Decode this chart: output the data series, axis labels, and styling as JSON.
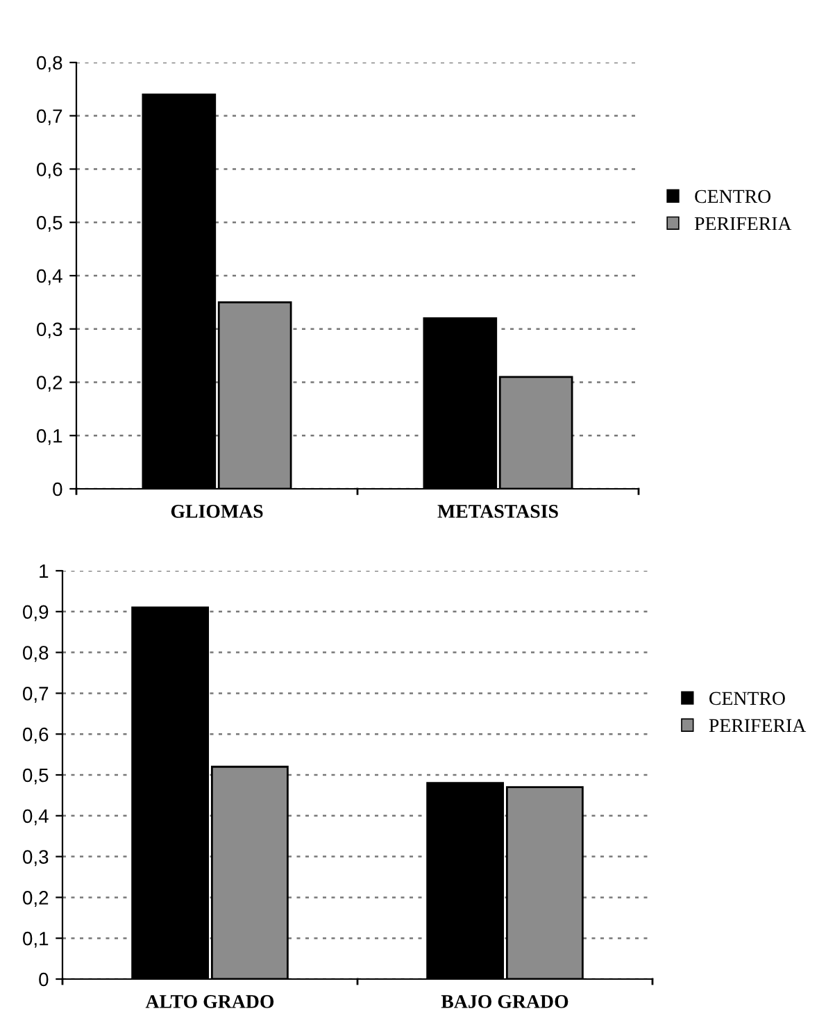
{
  "chart_data": [
    {
      "type": "bar",
      "categories": [
        "GLIOMAS",
        "METASTASIS"
      ],
      "series": [
        {
          "name": "CENTRO",
          "color": "#000000",
          "values": [
            0.74,
            0.32
          ]
        },
        {
          "name": "PERIFERIA",
          "color": "#8c8c8c",
          "values": [
            0.35,
            0.21
          ]
        }
      ],
      "ylim": [
        0,
        0.8
      ],
      "yticks": [
        0,
        {
          "value": 0.1,
          "label": "0,1"
        },
        {
          "value": 0.2,
          "label": "0,2"
        },
        {
          "value": 0.3,
          "label": "0,3"
        },
        {
          "value": 0.4,
          "label": "0,4"
        },
        {
          "value": 0.5,
          "label": "0,5"
        },
        {
          "value": 0.6,
          "label": "0,6"
        },
        {
          "value": 0.7,
          "label": "0,7"
        },
        {
          "value": 0.8,
          "label": "0,8"
        }
      ],
      "grid": "y",
      "legend": "right"
    },
    {
      "type": "bar",
      "categories": [
        "ALTO GRADO",
        "BAJO GRADO"
      ],
      "series": [
        {
          "name": "CENTRO",
          "color": "#000000",
          "values": [
            0.91,
            0.48
          ]
        },
        {
          "name": "PERIFERIA",
          "color": "#8c8c8c",
          "values": [
            0.52,
            0.47
          ]
        }
      ],
      "ylim": [
        0,
        1
      ],
      "yticks": [
        0,
        {
          "value": 0.1,
          "label": "0,1"
        },
        {
          "value": 0.2,
          "label": "0,2"
        },
        {
          "value": 0.3,
          "label": "0,3"
        },
        {
          "value": 0.4,
          "label": "0,4"
        },
        {
          "value": 0.5,
          "label": "0,5"
        },
        {
          "value": 0.6,
          "label": "0,6"
        },
        {
          "value": 0.7,
          "label": "0,7"
        },
        {
          "value": 0.8,
          "label": "0,8"
        },
        {
          "value": 0.9,
          "label": "0,9"
        },
        1
      ],
      "grid": "y",
      "legend": "right"
    }
  ]
}
